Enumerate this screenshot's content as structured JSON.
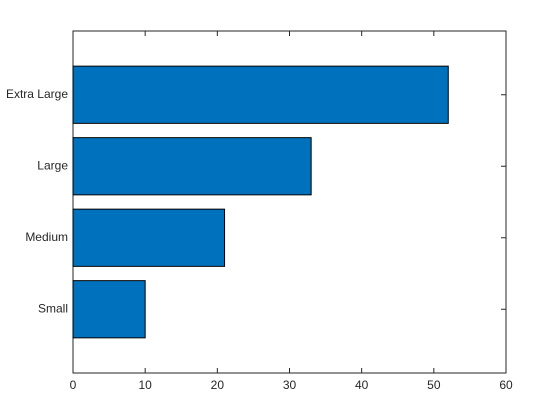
{
  "chart_data": {
    "type": "barh",
    "categories": [
      "Small",
      "Medium",
      "Large",
      "Extra Large"
    ],
    "values": [
      10,
      21,
      33,
      52
    ],
    "color": "#0072bd",
    "xlim": [
      0,
      60
    ],
    "xticks": [
      0,
      10,
      20,
      30,
      40,
      50,
      60
    ]
  }
}
